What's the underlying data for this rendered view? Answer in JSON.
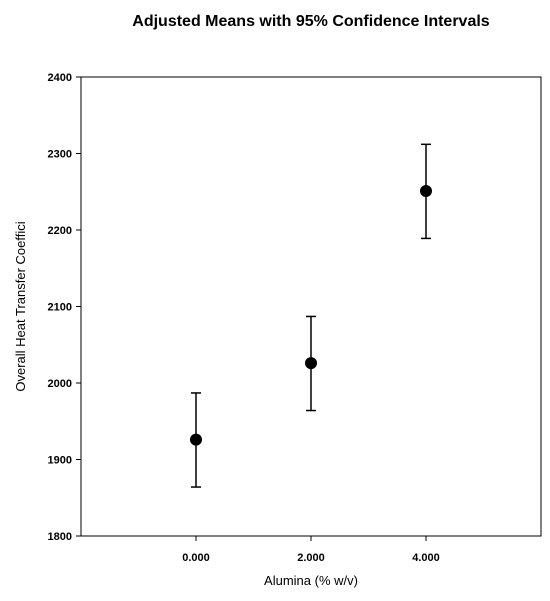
{
  "chart_data": {
    "type": "scatter",
    "title": "Adjusted Means with 95% Confidence Intervals",
    "xlabel": "Alumina (% w/v)",
    "ylabel": "Overall Heat Transfer Coeffici",
    "x_ticks": [
      "0.000",
      "2.000",
      "4.000"
    ],
    "y_ticks": [
      "1800",
      "1900",
      "2000",
      "2100",
      "2200",
      "2300",
      "2400"
    ],
    "xlim": [
      -2,
      6
    ],
    "ylim": [
      1800,
      2400
    ],
    "grid": false,
    "series": [
      {
        "points": [
          {
            "x": 0,
            "y": 1926,
            "lower": 1864,
            "upper": 1987
          },
          {
            "x": 2,
            "y": 2026,
            "lower": 1964,
            "upper": 2087
          },
          {
            "x": 4,
            "y": 2251,
            "lower": 2189,
            "upper": 2312
          }
        ]
      }
    ],
    "colors": {
      "marker": "#000000",
      "axes": "#000000",
      "background": "#ffffff"
    }
  }
}
